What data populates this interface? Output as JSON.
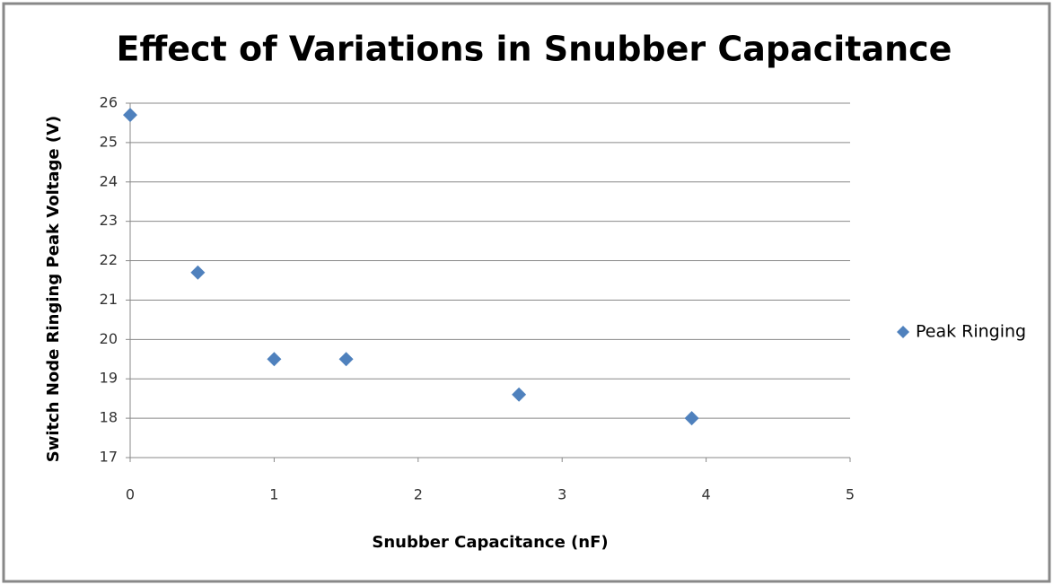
{
  "chart_data": {
    "type": "scatter",
    "title": "Effect of Variations in Snubber Capacitance",
    "xlabel": "Snubber Capacitance (nF)",
    "ylabel": "Switch Node Ringing Peak Voltage (V)",
    "series": [
      {
        "name": "Peak Ringing",
        "color": "#4f81bd",
        "x": [
          0,
          0.47,
          1,
          1.5,
          2.7,
          3.9
        ],
        "values": [
          25.7,
          21.7,
          19.5,
          19.5,
          18.6,
          18.0
        ]
      }
    ],
    "xlim": [
      0,
      5
    ],
    "xticks": [
      0,
      1,
      2,
      3,
      4,
      5
    ],
    "ylim": [
      17,
      26
    ],
    "yticks": [
      17,
      18,
      19,
      20,
      21,
      22,
      23,
      24,
      25,
      26
    ],
    "grid": true,
    "legend": "right"
  }
}
